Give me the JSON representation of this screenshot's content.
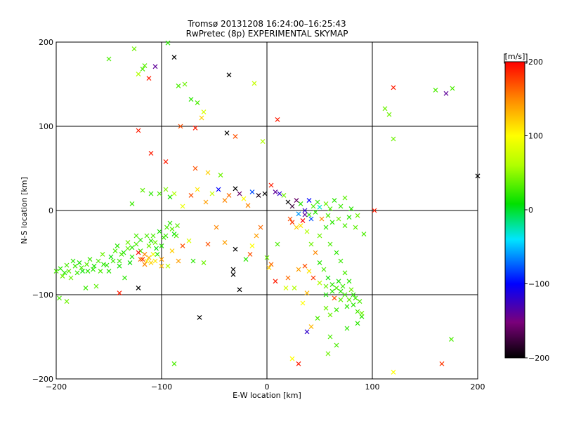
{
  "chart_data": {
    "type": "scatter",
    "title": "Tromsø 20131208 16:24:00–16:25:43",
    "subtitle": "RwPretec (8p) EXPERIMENTAL SKYMAP",
    "xlabel": "E-W location [km]",
    "ylabel": "N-S location [km]",
    "xlim": [
      -200,
      200
    ],
    "ylim": [
      -200,
      200
    ],
    "x_ticks": [
      "−200",
      "−100",
      "0",
      "100",
      "200"
    ],
    "y_ticks": [
      "200",
      "100",
      "0",
      "−100",
      "−200"
    ],
    "grid": true,
    "marker": "x",
    "colorbar": {
      "label": "[m/s]",
      "range": [
        -200,
        200
      ],
      "tick_labels": [
        "200",
        "100",
        "0",
        "−100",
        "−200"
      ],
      "colormap": "rainbow (black → purple → blue → cyan → green → yellow → orange → red)"
    },
    "points": [
      {
        "x": -196,
        "y": -69,
        "v": 20
      },
      {
        "x": -190,
        "y": -65,
        "v": 30
      },
      {
        "x": -186,
        "y": -80,
        "v": 40
      },
      {
        "x": -182,
        "y": -66,
        "v": 25
      },
      {
        "x": -178,
        "y": -62,
        "v": 15
      },
      {
        "x": -175,
        "y": -72,
        "v": 10
      },
      {
        "x": -171,
        "y": -64,
        "v": 35
      },
      {
        "x": -168,
        "y": -58,
        "v": 25
      },
      {
        "x": -165,
        "y": -70,
        "v": 20
      },
      {
        "x": -160,
        "y": -60,
        "v": 30
      },
      {
        "x": -156,
        "y": -52,
        "v": 40
      },
      {
        "x": -152,
        "y": -65,
        "v": 20
      },
      {
        "x": -148,
        "y": -55,
        "v": 10
      },
      {
        "x": -144,
        "y": -48,
        "v": 30
      },
      {
        "x": -140,
        "y": -60,
        "v": 25
      },
      {
        "x": -136,
        "y": -50,
        "v": 15
      },
      {
        "x": -132,
        "y": -45,
        "v": 35
      },
      {
        "x": -128,
        "y": -55,
        "v": 20
      },
      {
        "x": -124,
        "y": -40,
        "v": 30
      },
      {
        "x": -120,
        "y": -48,
        "v": 25
      },
      {
        "x": -118,
        "y": -58,
        "v": 180
      },
      {
        "x": -116,
        "y": -52,
        "v": 150
      },
      {
        "x": -114,
        "y": -60,
        "v": 110
      },
      {
        "x": -112,
        "y": -42,
        "v": 40
      },
      {
        "x": -110,
        "y": -36,
        "v": 20
      },
      {
        "x": -108,
        "y": -30,
        "v": 30
      },
      {
        "x": -105,
        "y": -45,
        "v": 10
      },
      {
        "x": -102,
        "y": -25,
        "v": 15
      },
      {
        "x": -98,
        "y": -32,
        "v": 25
      },
      {
        "x": -95,
        "y": -20,
        "v": 30
      },
      {
        "x": -92,
        "y": -15,
        "v": 20
      },
      {
        "x": -88,
        "y": -28,
        "v": 10
      },
      {
        "x": -85,
        "y": -18,
        "v": 35
      },
      {
        "x": -120,
        "y": -58,
        "v": 160
      },
      {
        "x": -110,
        "y": -62,
        "v": 120
      },
      {
        "x": -108,
        "y": -52,
        "v": 90
      },
      {
        "x": -122,
        "y": -50,
        "v": 200
      },
      {
        "x": -200,
        "y": -72,
        "v": 30
      },
      {
        "x": -194,
        "y": -78,
        "v": 40
      },
      {
        "x": -150,
        "y": -72,
        "v": 20
      },
      {
        "x": -140,
        "y": -66,
        "v": 15
      },
      {
        "x": -130,
        "y": -62,
        "v": 10
      },
      {
        "x": -197,
        "y": -104,
        "v": 30
      },
      {
        "x": -190,
        "y": -108,
        "v": 40
      },
      {
        "x": -172,
        "y": -92,
        "v": 25
      },
      {
        "x": -162,
        "y": -90,
        "v": 35
      },
      {
        "x": -135,
        "y": -80,
        "v": 20
      },
      {
        "x": -140,
        "y": -98,
        "v": 190
      },
      {
        "x": -122,
        "y": -92,
        "v": -200
      },
      {
        "x": -102,
        "y": 20,
        "v": 30
      },
      {
        "x": -96,
        "y": 25,
        "v": 45
      },
      {
        "x": -110,
        "y": 20,
        "v": 20
      },
      {
        "x": -118,
        "y": 24,
        "v": 35
      },
      {
        "x": -128,
        "y": 8,
        "v": 25
      },
      {
        "x": -92,
        "y": 16,
        "v": 15
      },
      {
        "x": -88,
        "y": 20,
        "v": 60
      },
      {
        "x": -80,
        "y": 5,
        "v": 90
      },
      {
        "x": -72,
        "y": 18,
        "v": 170
      },
      {
        "x": -66,
        "y": 25,
        "v": 110
      },
      {
        "x": -58,
        "y": 10,
        "v": 140
      },
      {
        "x": -52,
        "y": 20,
        "v": 70
      },
      {
        "x": -46,
        "y": 25,
        "v": -100
      },
      {
        "x": -40,
        "y": 12,
        "v": 150
      },
      {
        "x": -36,
        "y": 18,
        "v": 160
      },
      {
        "x": -30,
        "y": 26,
        "v": -200
      },
      {
        "x": -26,
        "y": 20,
        "v": -160
      },
      {
        "x": -22,
        "y": 14,
        "v": 100
      },
      {
        "x": -18,
        "y": 6,
        "v": 150
      },
      {
        "x": -14,
        "y": 22,
        "v": -80
      },
      {
        "x": -8,
        "y": 18,
        "v": -190
      },
      {
        "x": -2,
        "y": 20,
        "v": -200
      },
      {
        "x": 4,
        "y": 30,
        "v": 190
      },
      {
        "x": 8,
        "y": 22,
        "v": -140
      },
      {
        "x": 12,
        "y": 20,
        "v": -120
      },
      {
        "x": 16,
        "y": 18,
        "v": 40
      },
      {
        "x": 20,
        "y": 10,
        "v": -200
      },
      {
        "x": 24,
        "y": 5,
        "v": -180
      },
      {
        "x": 28,
        "y": 12,
        "v": -160
      },
      {
        "x": 32,
        "y": 8,
        "v": 20
      },
      {
        "x": 36,
        "y": 0,
        "v": -120
      },
      {
        "x": 40,
        "y": -5,
        "v": 20
      },
      {
        "x": 44,
        "y": 5,
        "v": 30
      },
      {
        "x": 48,
        "y": 10,
        "v": 20
      },
      {
        "x": 52,
        "y": -10,
        "v": 150
      },
      {
        "x": 56,
        "y": 8,
        "v": 40
      },
      {
        "x": 60,
        "y": 2,
        "v": 30
      },
      {
        "x": 64,
        "y": 12,
        "v": 20
      },
      {
        "x": 70,
        "y": 5,
        "v": 25
      },
      {
        "x": 74,
        "y": 15,
        "v": 35
      },
      {
        "x": 80,
        "y": 2,
        "v": 20
      },
      {
        "x": 86,
        "y": -6,
        "v": 40
      },
      {
        "x": 92,
        "y": -28,
        "v": 30
      },
      {
        "x": 102,
        "y": 0,
        "v": 190
      },
      {
        "x": 22,
        "y": -10,
        "v": 170
      },
      {
        "x": 28,
        "y": -20,
        "v": 120
      },
      {
        "x": 34,
        "y": -12,
        "v": 200
      },
      {
        "x": 38,
        "y": -25,
        "v": 60
      },
      {
        "x": 42,
        "y": -40,
        "v": 40
      },
      {
        "x": 46,
        "y": -50,
        "v": 150
      },
      {
        "x": 50,
        "y": -62,
        "v": 20
      },
      {
        "x": 54,
        "y": -70,
        "v": 30
      },
      {
        "x": 58,
        "y": -80,
        "v": 10
      },
      {
        "x": 62,
        "y": -88,
        "v": 20
      },
      {
        "x": 66,
        "y": -92,
        "v": 30
      },
      {
        "x": 70,
        "y": -96,
        "v": 20
      },
      {
        "x": 74,
        "y": -100,
        "v": 25
      },
      {
        "x": 78,
        "y": -106,
        "v": 35
      },
      {
        "x": 82,
        "y": -112,
        "v": 20
      },
      {
        "x": 86,
        "y": -120,
        "v": 30
      },
      {
        "x": 90,
        "y": -126,
        "v": 20
      },
      {
        "x": 68,
        "y": -84,
        "v": 15
      },
      {
        "x": 72,
        "y": -90,
        "v": 25
      },
      {
        "x": 64,
        "y": -104,
        "v": 170
      },
      {
        "x": 56,
        "y": -116,
        "v": 40
      },
      {
        "x": 48,
        "y": -128,
        "v": 30
      },
      {
        "x": 42,
        "y": -138,
        "v": 130
      },
      {
        "x": 38,
        "y": -144,
        "v": -120
      },
      {
        "x": 60,
        "y": -150,
        "v": 30
      },
      {
        "x": 66,
        "y": -160,
        "v": 30
      },
      {
        "x": 76,
        "y": -140,
        "v": 20
      },
      {
        "x": 86,
        "y": -134,
        "v": 20
      },
      {
        "x": 90,
        "y": -122,
        "v": 40
      },
      {
        "x": 82,
        "y": -100,
        "v": 20
      },
      {
        "x": 30,
        "y": -70,
        "v": 140
      },
      {
        "x": 36,
        "y": -66,
        "v": 170
      },
      {
        "x": 40,
        "y": -72,
        "v": 110
      },
      {
        "x": 44,
        "y": -80,
        "v": 180
      },
      {
        "x": 50,
        "y": -86,
        "v": 60
      },
      {
        "x": 56,
        "y": -90,
        "v": 40
      },
      {
        "x": 20,
        "y": -80,
        "v": 160
      },
      {
        "x": 18,
        "y": -92,
        "v": 80
      },
      {
        "x": 8,
        "y": -84,
        "v": 190
      },
      {
        "x": 26,
        "y": -92,
        "v": 60
      },
      {
        "x": 34,
        "y": -110,
        "v": 100
      },
      {
        "x": 38,
        "y": -98,
        "v": 130
      },
      {
        "x": -30,
        "y": -46,
        "v": -200
      },
      {
        "x": -32,
        "y": -70,
        "v": -200
      },
      {
        "x": -32,
        "y": -76,
        "v": -200
      },
      {
        "x": -26,
        "y": -94,
        "v": -200
      },
      {
        "x": -40,
        "y": -38,
        "v": 140
      },
      {
        "x": -48,
        "y": -20,
        "v": 150
      },
      {
        "x": -56,
        "y": -40,
        "v": 170
      },
      {
        "x": -60,
        "y": -62,
        "v": 40
      },
      {
        "x": -70,
        "y": -60,
        "v": 20
      },
      {
        "x": -74,
        "y": -36,
        "v": 80
      },
      {
        "x": -80,
        "y": -42,
        "v": 170
      },
      {
        "x": -84,
        "y": -60,
        "v": 140
      },
      {
        "x": -90,
        "y": -48,
        "v": 120
      },
      {
        "x": -94,
        "y": -66,
        "v": 60
      },
      {
        "x": -100,
        "y": -66,
        "v": 130
      },
      {
        "x": -6,
        "y": -20,
        "v": 160
      },
      {
        "x": -10,
        "y": -30,
        "v": 140
      },
      {
        "x": -14,
        "y": -42,
        "v": 100
      },
      {
        "x": -16,
        "y": -52,
        "v": 170
      },
      {
        "x": -20,
        "y": -58,
        "v": 20
      },
      {
        "x": 0,
        "y": -56,
        "v": 40
      },
      {
        "x": 4,
        "y": -64,
        "v": 160
      },
      {
        "x": 10,
        "y": -40,
        "v": 30
      },
      {
        "x": 2,
        "y": -68,
        "v": 120
      },
      {
        "x": -150,
        "y": 180,
        "v": 30
      },
      {
        "x": -126,
        "y": 192,
        "v": 40
      },
      {
        "x": -116,
        "y": 172,
        "v": 35
      },
      {
        "x": -118,
        "y": 168,
        "v": 30
      },
      {
        "x": -112,
        "y": 157,
        "v": 190
      },
      {
        "x": -106,
        "y": 171,
        "v": -140
      },
      {
        "x": -94,
        "y": 199,
        "v": 20
      },
      {
        "x": -88,
        "y": 182,
        "v": -200
      },
      {
        "x": -84,
        "y": 148,
        "v": 30
      },
      {
        "x": -78,
        "y": 150,
        "v": 40
      },
      {
        "x": -72,
        "y": 132,
        "v": 20
      },
      {
        "x": -66,
        "y": 128,
        "v": 30
      },
      {
        "x": -122,
        "y": 162,
        "v": 60
      },
      {
        "x": -36,
        "y": 161,
        "v": -200
      },
      {
        "x": -12,
        "y": 151,
        "v": 70
      },
      {
        "x": -60,
        "y": 117,
        "v": 80
      },
      {
        "x": -62,
        "y": 110,
        "v": 120
      },
      {
        "x": -68,
        "y": 98,
        "v": 190
      },
      {
        "x": -82,
        "y": 100,
        "v": 170
      },
      {
        "x": -122,
        "y": 95,
        "v": 190
      },
      {
        "x": -38,
        "y": 92,
        "v": -200
      },
      {
        "x": -30,
        "y": 88,
        "v": 170
      },
      {
        "x": 10,
        "y": 108,
        "v": 190
      },
      {
        "x": -4,
        "y": 82,
        "v": 60
      },
      {
        "x": -110,
        "y": 68,
        "v": 190
      },
      {
        "x": -96,
        "y": 58,
        "v": 190
      },
      {
        "x": -68,
        "y": 50,
        "v": 170
      },
      {
        "x": -56,
        "y": 45,
        "v": 120
      },
      {
        "x": -44,
        "y": 42,
        "v": 40
      },
      {
        "x": -88,
        "y": -182,
        "v": 30
      },
      {
        "x": -64,
        "y": -127,
        "v": -200
      },
      {
        "x": 120,
        "y": 146,
        "v": 190
      },
      {
        "x": 116,
        "y": 114,
        "v": 40
      },
      {
        "x": 120,
        "y": 85,
        "v": 40
      },
      {
        "x": 160,
        "y": 143,
        "v": 30
      },
      {
        "x": 170,
        "y": 139,
        "v": -140
      },
      {
        "x": 176,
        "y": 145,
        "v": 30
      },
      {
        "x": 200,
        "y": 41,
        "v": -200
      },
      {
        "x": 112,
        "y": 121,
        "v": 40
      },
      {
        "x": 175,
        "y": -153,
        "v": 30
      },
      {
        "x": 166,
        "y": -182,
        "v": 180
      },
      {
        "x": 120,
        "y": -192,
        "v": 100
      },
      {
        "x": 58,
        "y": -170,
        "v": 40
      },
      {
        "x": 30,
        "y": -182,
        "v": 190
      },
      {
        "x": 24,
        "y": -176,
        "v": 100
      },
      {
        "x": -120,
        "y": -35,
        "v": 20
      },
      {
        "x": -114,
        "y": -30,
        "v": 30
      },
      {
        "x": -106,
        "y": -38,
        "v": 40
      },
      {
        "x": -100,
        "y": -42,
        "v": 20
      },
      {
        "x": -96,
        "y": -30,
        "v": 25
      },
      {
        "x": -90,
        "y": -22,
        "v": 35
      },
      {
        "x": -86,
        "y": -30,
        "v": 30
      },
      {
        "x": -104,
        "y": -52,
        "v": 20
      },
      {
        "x": -112,
        "y": -56,
        "v": 130
      },
      {
        "x": -116,
        "y": -64,
        "v": 150
      },
      {
        "x": -106,
        "y": -60,
        "v": 110
      },
      {
        "x": -100,
        "y": -58,
        "v": 140
      },
      {
        "x": -124,
        "y": -30,
        "v": 30
      },
      {
        "x": -128,
        "y": -44,
        "v": 20
      },
      {
        "x": -132,
        "y": -38,
        "v": 40
      },
      {
        "x": -138,
        "y": -52,
        "v": 30
      },
      {
        "x": -142,
        "y": -42,
        "v": 20
      },
      {
        "x": -146,
        "y": -60,
        "v": 25
      },
      {
        "x": -155,
        "y": -64,
        "v": 20
      },
      {
        "x": -158,
        "y": -72,
        "v": 30
      },
      {
        "x": -164,
        "y": -66,
        "v": 15
      },
      {
        "x": -170,
        "y": -72,
        "v": 20
      },
      {
        "x": -176,
        "y": -68,
        "v": 30
      },
      {
        "x": -180,
        "y": -74,
        "v": 25
      },
      {
        "x": -184,
        "y": -60,
        "v": 20
      },
      {
        "x": -188,
        "y": -72,
        "v": 35
      },
      {
        "x": -192,
        "y": -74,
        "v": 20
      },
      {
        "x": 58,
        "y": -6,
        "v": 30
      },
      {
        "x": 62,
        "y": -14,
        "v": 20
      },
      {
        "x": 68,
        "y": -10,
        "v": 40
      },
      {
        "x": 74,
        "y": -18,
        "v": 30
      },
      {
        "x": 78,
        "y": -8,
        "v": 20
      },
      {
        "x": 84,
        "y": -20,
        "v": 35
      },
      {
        "x": 40,
        "y": 12,
        "v": -100
      },
      {
        "x": 36,
        "y": -5,
        "v": -140
      },
      {
        "x": 42,
        "y": -10,
        "v": -80
      },
      {
        "x": 30,
        "y": -4,
        "v": -60
      },
      {
        "x": 24,
        "y": -14,
        "v": 180
      },
      {
        "x": 32,
        "y": -18,
        "v": 110
      },
      {
        "x": 46,
        "y": -2,
        "v": 20
      },
      {
        "x": 50,
        "y": 4,
        "v": -30
      },
      {
        "x": 56,
        "y": -20,
        "v": 20
      },
      {
        "x": 50,
        "y": -30,
        "v": 40
      },
      {
        "x": 60,
        "y": -40,
        "v": 30
      },
      {
        "x": 66,
        "y": -50,
        "v": 20
      },
      {
        "x": 70,
        "y": -60,
        "v": 25
      },
      {
        "x": 74,
        "y": -74,
        "v": 30
      },
      {
        "x": 78,
        "y": -84,
        "v": 20
      },
      {
        "x": 80,
        "y": -94,
        "v": 40
      },
      {
        "x": 84,
        "y": -104,
        "v": 25
      },
      {
        "x": 88,
        "y": -108,
        "v": 30
      },
      {
        "x": 76,
        "y": -114,
        "v": 20
      },
      {
        "x": 70,
        "y": -106,
        "v": 35
      },
      {
        "x": 66,
        "y": -118,
        "v": 25
      },
      {
        "x": 60,
        "y": -124,
        "v": 40
      },
      {
        "x": 56,
        "y": -100,
        "v": 15
      },
      {
        "x": 62,
        "y": -96,
        "v": 20
      }
    ]
  }
}
